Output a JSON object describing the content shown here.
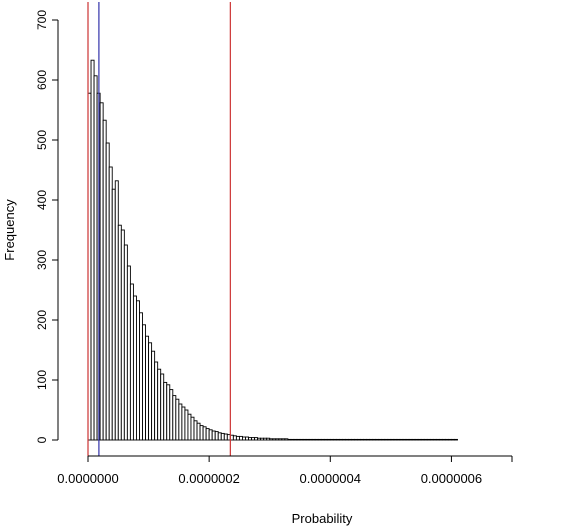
{
  "chart_data": {
    "type": "bar",
    "title": "",
    "xlabel": "Probability",
    "ylabel": "Frequency",
    "xlim": [
      0,
      7e-07
    ],
    "ylim": [
      0,
      700
    ],
    "x_ticks": [
      0,
      2e-07,
      4e-07,
      6e-07
    ],
    "x_tick_labels": [
      "0.0000000",
      "0.0000002",
      "0.0000004",
      "0.0000006"
    ],
    "y_ticks": [
      0,
      100,
      200,
      300,
      400,
      500,
      600,
      700
    ],
    "y_tick_labels": [
      "0",
      "100",
      "200",
      "300",
      "400",
      "500",
      "600",
      "700"
    ],
    "grid": false,
    "legend": "none",
    "bin_start": 0,
    "bin_width": 5e-09,
    "values": [
      578,
      633,
      607,
      578,
      562,
      533,
      495,
      455,
      418,
      432,
      358,
      350,
      325,
      290,
      260,
      240,
      232,
      212,
      192,
      173,
      162,
      148,
      130,
      118,
      110,
      96,
      92,
      84,
      74,
      68,
      60,
      55,
      50,
      43,
      38,
      32,
      28,
      24,
      22,
      19,
      17,
      15,
      14,
      12,
      11,
      10,
      9,
      8,
      7,
      6,
      6,
      5,
      5,
      4,
      4,
      4,
      3,
      3,
      3,
      3,
      2,
      2,
      2,
      2,
      2,
      2,
      1,
      1,
      1,
      1,
      1,
      1,
      1,
      1,
      1,
      1,
      1,
      1,
      1,
      1,
      1,
      1,
      1,
      1,
      1,
      1,
      1,
      1,
      1,
      1,
      1,
      1,
      1,
      1,
      1,
      1,
      1,
      1,
      1,
      1,
      1,
      1,
      1,
      1,
      1,
      1,
      1,
      1,
      1,
      1,
      1,
      1,
      1,
      1,
      1,
      1,
      1,
      1,
      1,
      1,
      1,
      1
    ],
    "vertical_lines": [
      {
        "x": 0,
        "color": "#cc3333"
      },
      {
        "x": 2.35e-07,
        "color": "#cc3333"
      },
      {
        "x": 1.8e-08,
        "color": "#3333aa"
      }
    ]
  }
}
